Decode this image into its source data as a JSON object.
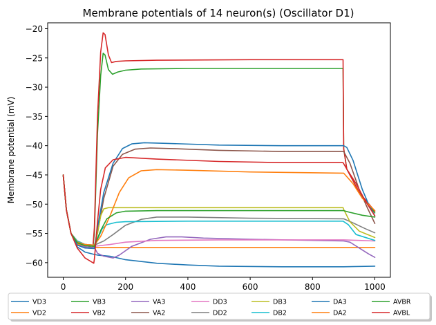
{
  "chart_data": {
    "type": "line",
    "title": "Membrane potentials of 14 neuron(s) (Oscillator D1)",
    "xlabel": "",
    "ylabel": "Membrane potential (mV)",
    "xlim": [
      -50,
      1050
    ],
    "ylim": [
      -62.5,
      -19
    ],
    "xticks": [
      0,
      200,
      400,
      600,
      800,
      1000
    ],
    "yticks": [
      -60,
      -55,
      -50,
      -45,
      -40,
      -35,
      -30,
      -25,
      -20
    ],
    "grid": false,
    "legend_position": "bottom",
    "series": [
      {
        "name": "VD3",
        "color": "#1f77b4",
        "points": [
          [
            0,
            -45
          ],
          [
            10,
            -51
          ],
          [
            25,
            -55
          ],
          [
            45,
            -57.3
          ],
          [
            70,
            -58.2
          ],
          [
            100,
            -58.6
          ],
          [
            110,
            -58.7
          ],
          [
            150,
            -58.9
          ],
          [
            200,
            -59.5
          ],
          [
            300,
            -60.1
          ],
          [
            400,
            -60.4
          ],
          [
            500,
            -60.6
          ],
          [
            700,
            -60.7
          ],
          [
            900,
            -60.7
          ],
          [
            1000,
            -60.6
          ]
        ]
      },
      {
        "name": "VD2",
        "color": "#ff7f0e",
        "points": [
          [
            0,
            -45
          ],
          [
            10,
            -51
          ],
          [
            25,
            -55
          ],
          [
            45,
            -56.8
          ],
          [
            70,
            -57.3
          ],
          [
            100,
            -57.4
          ],
          [
            120,
            -57.4
          ],
          [
            400,
            -57.4
          ],
          [
            900,
            -57.4
          ],
          [
            1000,
            -57.4
          ]
        ]
      },
      {
        "name": "VB3",
        "color": "#2ca02c",
        "points": [
          [
            0,
            -45
          ],
          [
            10,
            -51
          ],
          [
            25,
            -55
          ],
          [
            45,
            -57
          ],
          [
            70,
            -57.3
          ],
          [
            95,
            -57.4
          ],
          [
            100,
            -55
          ],
          [
            110,
            -38
          ],
          [
            120,
            -28
          ],
          [
            128,
            -24.2
          ],
          [
            134,
            -24.5
          ],
          [
            145,
            -27
          ],
          [
            158,
            -27.8
          ],
          [
            175,
            -27.4
          ],
          [
            200,
            -27.1
          ],
          [
            250,
            -26.9
          ],
          [
            400,
            -26.8
          ],
          [
            600,
            -26.8
          ],
          [
            898,
            -26.8
          ],
          [
            900,
            -40.5
          ],
          [
            910,
            -44
          ],
          [
            950,
            -48
          ],
          [
            1000,
            -51.5
          ]
        ]
      },
      {
        "name": "VB2",
        "color": "#d62728",
        "points": [
          [
            0,
            -45
          ],
          [
            10,
            -51
          ],
          [
            25,
            -55
          ],
          [
            45,
            -57
          ],
          [
            70,
            -57.3
          ],
          [
            95,
            -57.4
          ],
          [
            100,
            -54
          ],
          [
            110,
            -35
          ],
          [
            120,
            -24
          ],
          [
            128,
            -20.7
          ],
          [
            134,
            -21
          ],
          [
            145,
            -24.5
          ],
          [
            155,
            -25.8
          ],
          [
            170,
            -25.6
          ],
          [
            200,
            -25.5
          ],
          [
            300,
            -25.4
          ],
          [
            600,
            -25.3
          ],
          [
            898,
            -25.3
          ],
          [
            900,
            -40.5
          ],
          [
            910,
            -44
          ],
          [
            950,
            -48
          ],
          [
            1000,
            -51.2
          ]
        ]
      },
      {
        "name": "VA3",
        "color": "#9467bd",
        "points": [
          [
            0,
            -45
          ],
          [
            10,
            -51
          ],
          [
            25,
            -55
          ],
          [
            45,
            -57
          ],
          [
            70,
            -57.3
          ],
          [
            100,
            -57.4
          ],
          [
            110,
            -58.4
          ],
          [
            130,
            -58.9
          ],
          [
            160,
            -59.2
          ],
          [
            180,
            -58.7
          ],
          [
            220,
            -57.2
          ],
          [
            280,
            -56
          ],
          [
            330,
            -55.6
          ],
          [
            380,
            -55.6
          ],
          [
            450,
            -55.8
          ],
          [
            600,
            -56
          ],
          [
            900,
            -56.3
          ],
          [
            920,
            -56.5
          ],
          [
            950,
            -57.5
          ],
          [
            980,
            -58.5
          ],
          [
            1000,
            -59.1
          ]
        ]
      },
      {
        "name": "VA2",
        "color": "#8c564b",
        "points": [
          [
            0,
            -45
          ],
          [
            10,
            -51
          ],
          [
            25,
            -55
          ],
          [
            45,
            -56.3
          ],
          [
            70,
            -56.9
          ],
          [
            100,
            -57.1
          ],
          [
            110,
            -55
          ],
          [
            130,
            -49
          ],
          [
            160,
            -43.5
          ],
          [
            190,
            -41.5
          ],
          [
            230,
            -40.6
          ],
          [
            280,
            -40.4
          ],
          [
            350,
            -40.5
          ],
          [
            500,
            -40.8
          ],
          [
            700,
            -41
          ],
          [
            900,
            -41
          ],
          [
            920,
            -43
          ],
          [
            950,
            -47.5
          ],
          [
            975,
            -50.5
          ],
          [
            1000,
            -53.3
          ]
        ]
      },
      {
        "name": "DD3",
        "color": "#e377c2",
        "points": [
          [
            0,
            -45
          ],
          [
            10,
            -51
          ],
          [
            25,
            -55
          ],
          [
            45,
            -56.3
          ],
          [
            70,
            -56.9
          ],
          [
            100,
            -57.2
          ],
          [
            150,
            -56.9
          ],
          [
            200,
            -56.5
          ],
          [
            300,
            -56.2
          ],
          [
            500,
            -56.1
          ],
          [
            700,
            -56.1
          ],
          [
            900,
            -56.1
          ],
          [
            950,
            -56.2
          ],
          [
            1000,
            -56.3
          ]
        ]
      },
      {
        "name": "DD2",
        "color": "#7f7f7f",
        "points": [
          [
            0,
            -45
          ],
          [
            10,
            -51
          ],
          [
            25,
            -55
          ],
          [
            45,
            -56.3
          ],
          [
            70,
            -56.9
          ],
          [
            100,
            -57
          ],
          [
            130,
            -56.3
          ],
          [
            160,
            -55.2
          ],
          [
            200,
            -53.6
          ],
          [
            250,
            -52.6
          ],
          [
            300,
            -52.2
          ],
          [
            400,
            -52.2
          ],
          [
            600,
            -52.4
          ],
          [
            900,
            -52.5
          ],
          [
            930,
            -53.2
          ],
          [
            970,
            -54.2
          ],
          [
            1000,
            -54.9
          ]
        ]
      },
      {
        "name": "DB3",
        "color": "#bcbd22",
        "points": [
          [
            0,
            -45
          ],
          [
            10,
            -51
          ],
          [
            25,
            -55
          ],
          [
            45,
            -56.3
          ],
          [
            70,
            -56.9
          ],
          [
            100,
            -57
          ],
          [
            110,
            -55
          ],
          [
            120,
            -52
          ],
          [
            130,
            -50.8
          ],
          [
            145,
            -50.6
          ],
          [
            200,
            -50.6
          ],
          [
            400,
            -50.6
          ],
          [
            700,
            -50.6
          ],
          [
            898,
            -50.6
          ],
          [
            900,
            -50.9
          ],
          [
            920,
            -53
          ],
          [
            950,
            -54.6
          ],
          [
            1000,
            -55.7
          ]
        ]
      },
      {
        "name": "DB2",
        "color": "#17becf",
        "points": [
          [
            0,
            -45
          ],
          [
            10,
            -51
          ],
          [
            25,
            -55
          ],
          [
            45,
            -56.3
          ],
          [
            70,
            -56.9
          ],
          [
            100,
            -57
          ],
          [
            110,
            -56
          ],
          [
            125,
            -54.2
          ],
          [
            140,
            -53.5
          ],
          [
            170,
            -53.1
          ],
          [
            200,
            -53
          ],
          [
            400,
            -52.9
          ],
          [
            700,
            -52.9
          ],
          [
            898,
            -52.9
          ],
          [
            915,
            -53.5
          ],
          [
            940,
            -55.2
          ],
          [
            1000,
            -56.2
          ]
        ]
      },
      {
        "name": "DA3",
        "color": "#1f77b4",
        "points": [
          [
            0,
            -45
          ],
          [
            10,
            -51
          ],
          [
            25,
            -55
          ],
          [
            45,
            -57
          ],
          [
            70,
            -57.5
          ],
          [
            100,
            -57.6
          ],
          [
            110,
            -54
          ],
          [
            130,
            -48
          ],
          [
            160,
            -43
          ],
          [
            190,
            -40.5
          ],
          [
            220,
            -39.7
          ],
          [
            260,
            -39.5
          ],
          [
            330,
            -39.6
          ],
          [
            500,
            -39.9
          ],
          [
            700,
            -40
          ],
          [
            900,
            -40
          ],
          [
            910,
            -40.3
          ],
          [
            930,
            -42.5
          ],
          [
            960,
            -47.5
          ],
          [
            980,
            -50
          ],
          [
            1000,
            -52
          ]
        ]
      },
      {
        "name": "DA2",
        "color": "#ff7f0e",
        "points": [
          [
            0,
            -45
          ],
          [
            10,
            -51
          ],
          [
            25,
            -55
          ],
          [
            45,
            -56.5
          ],
          [
            70,
            -56.9
          ],
          [
            100,
            -57
          ],
          [
            120,
            -55.5
          ],
          [
            150,
            -52
          ],
          [
            180,
            -48
          ],
          [
            210,
            -45.5
          ],
          [
            250,
            -44.3
          ],
          [
            300,
            -44.1
          ],
          [
            400,
            -44.2
          ],
          [
            600,
            -44.5
          ],
          [
            900,
            -44.7
          ],
          [
            930,
            -46.5
          ],
          [
            960,
            -49
          ],
          [
            1000,
            -51.1
          ]
        ]
      },
      {
        "name": "AVBR",
        "color": "#2ca02c",
        "points": [
          [
            0,
            -45
          ],
          [
            10,
            -51
          ],
          [
            25,
            -55
          ],
          [
            45,
            -56.6
          ],
          [
            70,
            -57.1
          ],
          [
            100,
            -57.2
          ],
          [
            120,
            -54.5
          ],
          [
            140,
            -52.5
          ],
          [
            170,
            -51.5
          ],
          [
            200,
            -51.2
          ],
          [
            300,
            -51.1
          ],
          [
            600,
            -51.1
          ],
          [
            900,
            -51.1
          ],
          [
            920,
            -51.4
          ],
          [
            960,
            -51.9
          ],
          [
            1000,
            -52.2
          ]
        ]
      },
      {
        "name": "AVBL",
        "color": "#d62728",
        "points": [
          [
            0,
            -45
          ],
          [
            10,
            -51
          ],
          [
            25,
            -55
          ],
          [
            45,
            -57.5
          ],
          [
            70,
            -59.2
          ],
          [
            98,
            -60.1
          ],
          [
            100,
            -59.4
          ],
          [
            110,
            -53
          ],
          [
            120,
            -47.5
          ],
          [
            135,
            -43.8
          ],
          [
            160,
            -42.4
          ],
          [
            200,
            -42
          ],
          [
            300,
            -42.3
          ],
          [
            500,
            -42.7
          ],
          [
            700,
            -42.9
          ],
          [
            898,
            -42.9
          ],
          [
            910,
            -44
          ],
          [
            940,
            -46.5
          ],
          [
            970,
            -49.5
          ],
          [
            1000,
            -52
          ]
        ]
      }
    ]
  }
}
